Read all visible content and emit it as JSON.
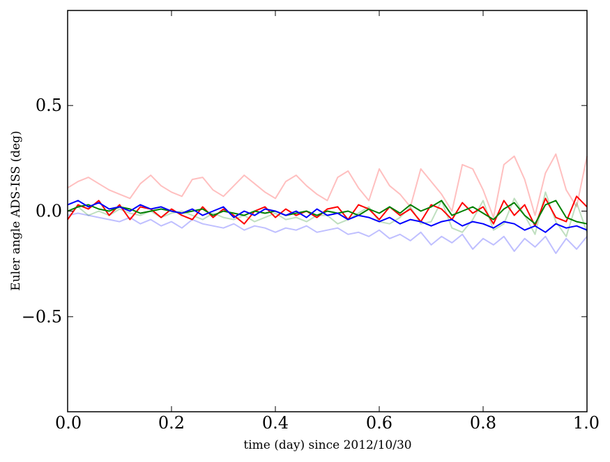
{
  "chart_data": {
    "type": "line",
    "title": "",
    "xlabel": "time (day) since 2012/10/30",
    "ylabel": "Euler angle ADS-ISS (deg)",
    "xlim": [
      0.0,
      1.0
    ],
    "ylim": [
      -0.95,
      0.95
    ],
    "grid": false,
    "legend": "none",
    "x_ticks": [
      {
        "value": 0.0,
        "label": "0.0"
      },
      {
        "value": 0.2,
        "label": "0.2"
      },
      {
        "value": 0.4,
        "label": "0.4"
      },
      {
        "value": 0.6,
        "label": "0.6"
      },
      {
        "value": 0.8,
        "label": "0.8"
      },
      {
        "value": 1.0,
        "label": "1.0"
      }
    ],
    "y_ticks": [
      {
        "value": -0.5,
        "label": "−0.5"
      },
      {
        "value": 0.0,
        "label": "0.0"
      },
      {
        "value": 0.5,
        "label": "0.5"
      }
    ],
    "x": [
      0.0,
      0.02,
      0.04,
      0.06,
      0.08,
      0.1,
      0.12,
      0.14,
      0.16,
      0.18,
      0.2,
      0.22,
      0.24,
      0.26,
      0.28,
      0.3,
      0.32,
      0.34,
      0.36,
      0.38,
      0.4,
      0.42,
      0.44,
      0.46,
      0.48,
      0.5,
      0.52,
      0.54,
      0.56,
      0.58,
      0.6,
      0.62,
      0.64,
      0.66,
      0.68,
      0.7,
      0.72,
      0.74,
      0.76,
      0.78,
      0.8,
      0.82,
      0.84,
      0.86,
      0.88,
      0.9,
      0.92,
      0.94,
      0.96,
      0.98,
      1.0
    ],
    "series": [
      {
        "color": "#ff0000",
        "opacity": 0.25,
        "values": [
          0.11,
          0.14,
          0.16,
          0.13,
          0.1,
          0.08,
          0.06,
          0.13,
          0.17,
          0.12,
          0.09,
          0.07,
          0.15,
          0.16,
          0.1,
          0.07,
          0.12,
          0.17,
          0.13,
          0.09,
          0.06,
          0.14,
          0.17,
          0.12,
          0.08,
          0.05,
          0.16,
          0.19,
          0.11,
          0.05,
          0.2,
          0.12,
          0.08,
          0.02,
          0.2,
          0.14,
          0.08,
          0.0,
          0.22,
          0.2,
          0.1,
          -0.03,
          0.22,
          0.26,
          0.15,
          -0.02,
          0.18,
          0.27,
          0.1,
          0.02,
          0.26
        ]
      },
      {
        "color": "#008000",
        "opacity": 0.25,
        "values": [
          0.0,
          0.02,
          -0.02,
          0.0,
          -0.02,
          0.01,
          -0.01,
          -0.02,
          0.0,
          -0.03,
          -0.01,
          0.0,
          -0.02,
          -0.04,
          -0.01,
          -0.03,
          -0.04,
          -0.02,
          -0.05,
          -0.03,
          -0.01,
          -0.04,
          -0.03,
          -0.05,
          -0.02,
          -0.02,
          -0.06,
          -0.04,
          -0.01,
          0.02,
          -0.05,
          -0.06,
          -0.03,
          0.02,
          -0.06,
          -0.05,
          0.05,
          -0.08,
          -0.1,
          -0.04,
          0.05,
          -0.09,
          -0.06,
          0.06,
          -0.02,
          -0.11,
          0.09,
          -0.05,
          -0.12,
          0.04,
          -0.1
        ]
      },
      {
        "color": "#0000ff",
        "opacity": 0.25,
        "values": [
          -0.02,
          -0.01,
          -0.02,
          -0.03,
          -0.04,
          -0.05,
          -0.03,
          -0.06,
          -0.04,
          -0.07,
          -0.05,
          -0.08,
          -0.04,
          -0.06,
          -0.07,
          -0.08,
          -0.06,
          -0.09,
          -0.07,
          -0.08,
          -0.1,
          -0.08,
          -0.09,
          -0.07,
          -0.1,
          -0.09,
          -0.08,
          -0.11,
          -0.1,
          -0.12,
          -0.09,
          -0.13,
          -0.11,
          -0.14,
          -0.1,
          -0.16,
          -0.12,
          -0.15,
          -0.11,
          -0.18,
          -0.13,
          -0.16,
          -0.12,
          -0.19,
          -0.13,
          -0.17,
          -0.12,
          -0.2,
          -0.13,
          -0.18,
          -0.12
        ]
      },
      {
        "color": "#ff0000",
        "opacity": 1,
        "values": [
          -0.04,
          0.03,
          0.01,
          0.05,
          -0.02,
          0.03,
          -0.04,
          0.02,
          0.01,
          -0.03,
          0.01,
          -0.02,
          -0.04,
          0.02,
          -0.03,
          0.01,
          -0.02,
          -0.06,
          0.0,
          0.02,
          -0.03,
          0.01,
          -0.02,
          0.0,
          -0.03,
          0.01,
          0.02,
          -0.04,
          0.03,
          0.01,
          -0.04,
          0.02,
          -0.02,
          0.01,
          -0.05,
          0.03,
          0.01,
          -0.04,
          0.04,
          -0.01,
          0.02,
          -0.06,
          0.05,
          -0.02,
          0.03,
          -0.07,
          0.06,
          -0.03,
          -0.05,
          0.07,
          0.02
        ]
      },
      {
        "color": "#008000",
        "opacity": 1,
        "values": [
          0.0,
          0.02,
          0.03,
          0.01,
          0.0,
          0.02,
          0.01,
          -0.01,
          0.0,
          0.01,
          0.0,
          -0.01,
          0.0,
          0.01,
          -0.02,
          0.0,
          -0.01,
          -0.02,
          0.0,
          -0.01,
          0.0,
          -0.02,
          -0.01,
          0.0,
          -0.02,
          0.0,
          -0.01,
          0.0,
          -0.02,
          0.01,
          -0.01,
          0.02,
          -0.01,
          0.03,
          0.0,
          0.02,
          0.05,
          -0.02,
          0.0,
          0.02,
          -0.01,
          -0.04,
          0.01,
          0.04,
          -0.02,
          -0.06,
          0.03,
          0.05,
          -0.03,
          -0.05,
          -0.06
        ]
      },
      {
        "color": "#0000ff",
        "opacity": 1,
        "values": [
          0.03,
          0.05,
          0.02,
          0.04,
          0.01,
          0.02,
          0.0,
          0.03,
          0.01,
          0.02,
          0.0,
          -0.01,
          0.01,
          -0.02,
          0.0,
          0.02,
          -0.03,
          0.0,
          -0.02,
          0.01,
          0.0,
          -0.02,
          0.0,
          -0.03,
          0.01,
          -0.02,
          -0.01,
          -0.04,
          -0.02,
          -0.03,
          -0.05,
          -0.03,
          -0.06,
          -0.04,
          -0.05,
          -0.07,
          -0.05,
          -0.04,
          -0.07,
          -0.05,
          -0.06,
          -0.08,
          -0.05,
          -0.06,
          -0.09,
          -0.07,
          -0.1,
          -0.06,
          -0.08,
          -0.07,
          -0.09
        ]
      }
    ]
  }
}
